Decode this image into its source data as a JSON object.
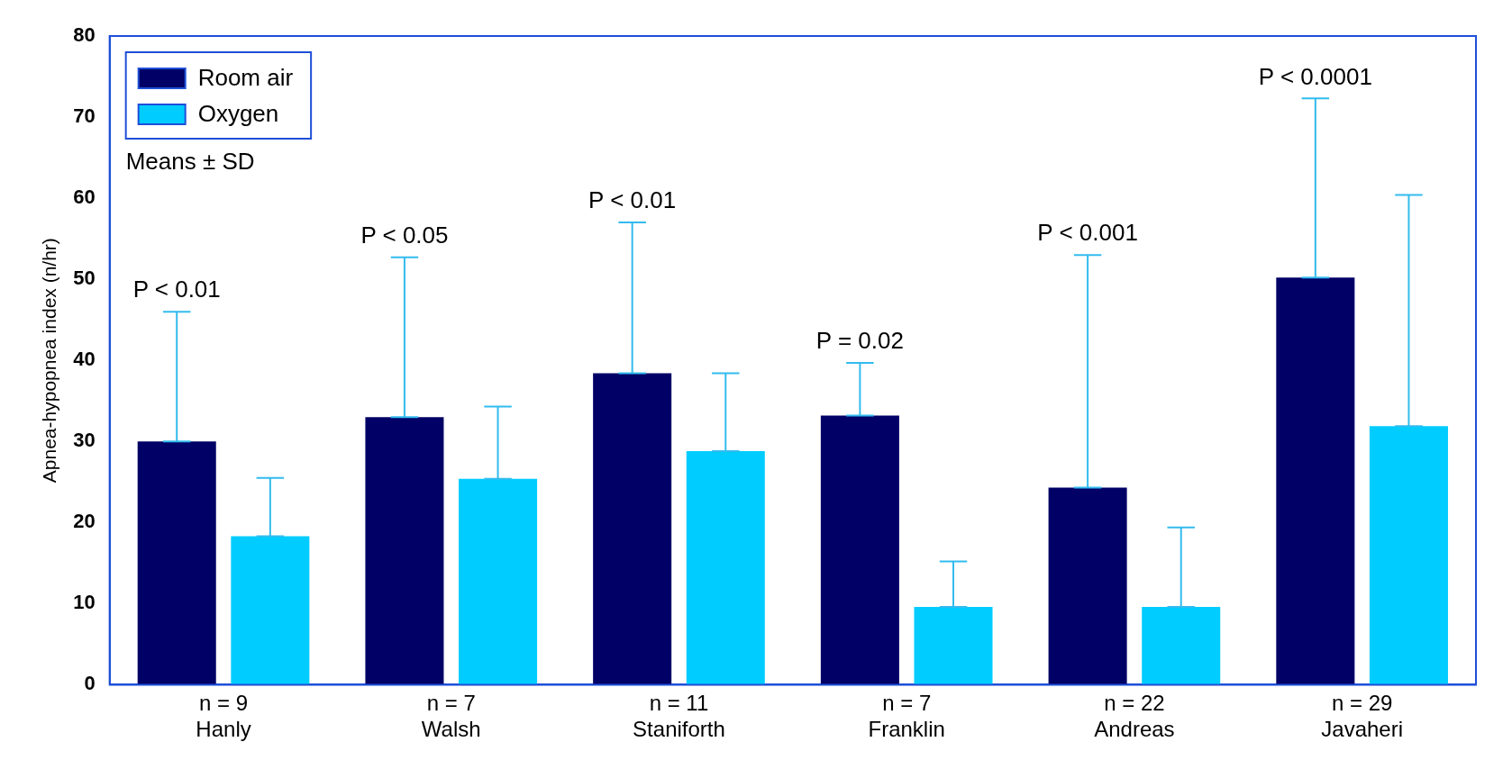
{
  "chart_data": {
    "type": "bar",
    "ylabel": "Apnea-hypopnea index (n/hr)",
    "categories": [
      "n = 9\nHanly",
      "n = 7\nWalsh",
      "n = 11\nStaniforth",
      "n = 7\nFranklin",
      "n = 22\nAndreas",
      "n = 29\nJavaheri"
    ],
    "series": [
      {
        "name": "Room air",
        "color": "#000066",
        "values": [
          30,
          33,
          38.4,
          33.2,
          24.3,
          50.2
        ],
        "errors": [
          [
            30,
            46
          ],
          [
            33,
            52.7
          ],
          [
            38.4,
            57
          ],
          [
            33.2,
            39.7
          ],
          [
            24.3,
            53
          ],
          [
            50.2,
            72.3
          ]
        ]
      },
      {
        "name": "Oxygen",
        "color": "#00ccff",
        "values": [
          18.3,
          25.4,
          28.8,
          9.6,
          9.6,
          31.9
        ],
        "errors": [
          [
            18.3,
            25.5
          ],
          [
            25.4,
            34.3
          ],
          [
            28.8,
            38.4
          ],
          [
            9.6,
            15.2
          ],
          [
            9.6,
            19.4
          ],
          [
            31.9,
            60.4
          ]
        ]
      }
    ],
    "ylim": [
      0,
      80
    ],
    "yticks": [
      0,
      10,
      20,
      30,
      40,
      50,
      60,
      70,
      80
    ],
    "grid": false,
    "legend": "top left",
    "annotations": [
      "Means ± SD",
      "P < 0.01",
      "P < 0.05",
      "P < 0.01",
      "P = 0.02",
      "P < 0.001",
      "P < 0.0001"
    ]
  }
}
